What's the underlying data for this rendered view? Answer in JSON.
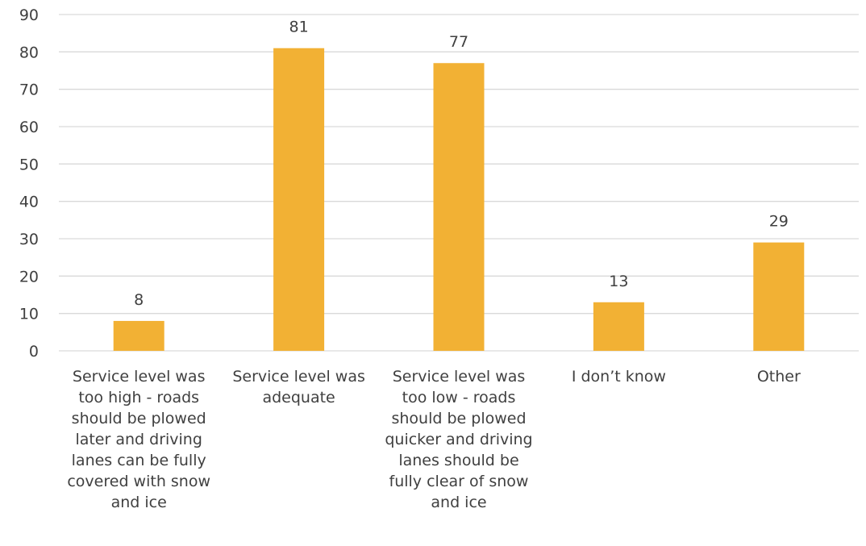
{
  "chart_data": {
    "type": "bar",
    "categories": [
      "Service level was too high - roads should be plowed later and driving lanes can be fully covered with snow and ice",
      "Service level was adequate",
      "Service level was too low - roads should be plowed quicker and driving lanes should be fully clear of snow and ice",
      "I don’t know",
      "Other"
    ],
    "values": [
      8,
      81,
      77,
      13,
      29
    ],
    "ylim": [
      0,
      90
    ],
    "yticks": [
      "0",
      "10",
      "20",
      "30",
      "40",
      "50",
      "60",
      "70",
      "80",
      "90"
    ],
    "data_labels": [
      "8",
      "81",
      "77",
      "13",
      "29"
    ],
    "grid": true,
    "bar_color": "#F2B134",
    "grid_color": "#D9D9D9"
  }
}
